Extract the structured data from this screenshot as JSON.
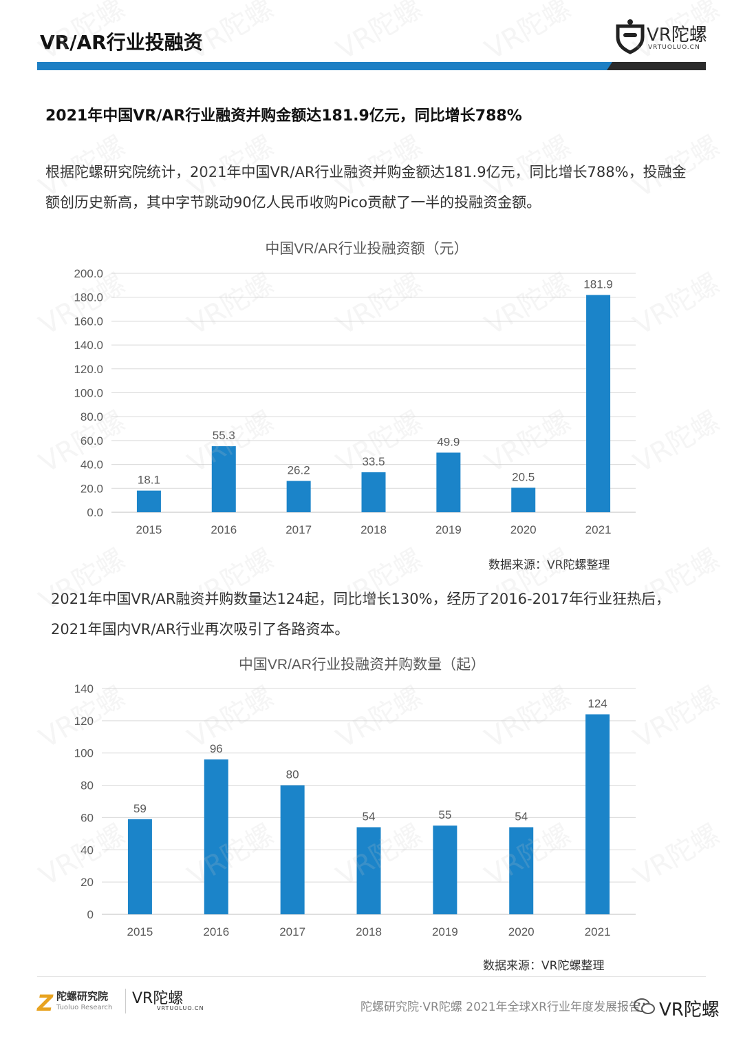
{
  "header": {
    "title": "VR/AR行业投融资",
    "logo_name": "VR陀螺",
    "logo_sub": "VRTUOLUO.CN"
  },
  "colors": {
    "bar": "#1b84c9",
    "band_blue": "#1d7fc4",
    "band_dark": "#2b2b2b",
    "grid": "#d9d9d9",
    "watermark": "#e8e8e8"
  },
  "watermark": "VR陀螺",
  "headline": "2021年中国VR/AR行业融资并购金额达181.9亿元，同比增长788%",
  "para1": "根据陀螺研究院统计，2021年中国VR/AR行业融资并购金额达181.9亿元，同比增长788%，投融金额创历史新高，其中字节跳动90亿人民币收购Pico贡献了一半的投融资金额。",
  "para2": "2021年中国VR/AR融资并购数量达124起，同比增长130%，经历了2016-2017年行业狂热后，2021年国内VR/AR行业再次吸引了各路资本。",
  "source1": "数据来源：VR陀螺整理",
  "source2": "数据来源：VR陀螺整理",
  "footer": {
    "org_cn": "陀螺研究院",
    "org_en": "Tuoluo Research",
    "logo2": "VR陀螺",
    "logo2_sub": "VRTUOLUO.CN",
    "text": "陀螺研究院·VR陀螺 2021年全球XR行业年度发展报告",
    "wechat": "VR陀螺"
  },
  "chart_data": [
    {
      "type": "bar",
      "title": "中国VR/AR行业投融资额（元）",
      "categories": [
        "2015",
        "2016",
        "2017",
        "2018",
        "2019",
        "2020",
        "2021"
      ],
      "values": [
        18.1,
        55.3,
        26.2,
        33.5,
        49.9,
        20.5,
        181.9
      ],
      "value_labels": [
        "18.1",
        "55.3",
        "26.2",
        "33.5",
        "49.9",
        "20.5",
        "181.9"
      ],
      "yticks": [
        "0.0",
        "20.0",
        "40.0",
        "60.0",
        "80.0",
        "100.0",
        "120.0",
        "140.0",
        "160.0",
        "180.0",
        "200.0"
      ],
      "ylim": [
        0,
        200
      ],
      "grid": true,
      "legend": "none"
    },
    {
      "type": "bar",
      "title": "中国VR/AR行业投融资并购数量（起）",
      "categories": [
        "2015",
        "2016",
        "2017",
        "2018",
        "2019",
        "2020",
        "2021"
      ],
      "values": [
        59,
        96,
        80,
        54,
        55,
        54,
        124
      ],
      "value_labels": [
        "59",
        "96",
        "80",
        "54",
        "55",
        "54",
        "124"
      ],
      "yticks": [
        "0",
        "20",
        "40",
        "60",
        "80",
        "100",
        "120",
        "140"
      ],
      "ylim": [
        0,
        140
      ],
      "grid": true,
      "legend": "none"
    }
  ]
}
